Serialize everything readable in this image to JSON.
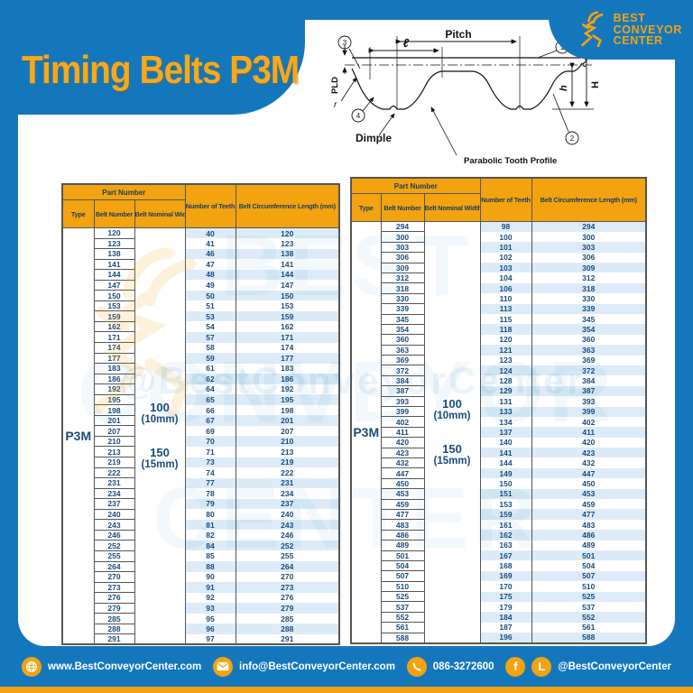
{
  "page": {
    "title": "Timing Belts P3M"
  },
  "logo": {
    "line1": "BEST",
    "line2": "CONVEYOR",
    "line3": "CENTER"
  },
  "colors": {
    "blue": "#1577bb",
    "yellow": "#f2a30f",
    "navy_text": "#1b4a7d",
    "stripe": "#dcebf7"
  },
  "diagram": {
    "labels": {
      "pitch": "Pitch",
      "length": "ℓ",
      "pld": "PLD",
      "r": "r",
      "h": "h",
      "H": "H",
      "dimple": "Dimple",
      "parabolic": "Parabolic Tooth Profile",
      "callout_1": "1",
      "callout_2": "2",
      "callout_3": "3",
      "callout_4": "4"
    }
  },
  "table_headers": {
    "part_number": "Part Number",
    "type": "Type",
    "belt_number": "Belt Number",
    "belt_nominal_width": "Belt Nominal Width",
    "number_of_teeth": "Number of Teeth",
    "belt_circumference": "Belt Circumference Length (mm)"
  },
  "tables": [
    {
      "type": "P3M",
      "width_labels": [
        "100",
        "(10mm)",
        "150",
        "(15mm)"
      ],
      "rows": [
        [
          120,
          40,
          120
        ],
        [
          123,
          41,
          123
        ],
        [
          138,
          46,
          138
        ],
        [
          141,
          47,
          141
        ],
        [
          144,
          48,
          144
        ],
        [
          147,
          49,
          147
        ],
        [
          150,
          50,
          150
        ],
        [
          153,
          51,
          153
        ],
        [
          159,
          53,
          159
        ],
        [
          162,
          54,
          162
        ],
        [
          171,
          57,
          171
        ],
        [
          174,
          58,
          174
        ],
        [
          177,
          59,
          177
        ],
        [
          183,
          61,
          183
        ],
        [
          186,
          62,
          186
        ],
        [
          192,
          64,
          192
        ],
        [
          195,
          65,
          195
        ],
        [
          198,
          66,
          198
        ],
        [
          201,
          67,
          201
        ],
        [
          207,
          69,
          207
        ],
        [
          210,
          70,
          210
        ],
        [
          213,
          71,
          213
        ],
        [
          219,
          73,
          219
        ],
        [
          222,
          74,
          222
        ],
        [
          231,
          77,
          231
        ],
        [
          234,
          78,
          234
        ],
        [
          237,
          79,
          237
        ],
        [
          240,
          80,
          240
        ],
        [
          243,
          81,
          243
        ],
        [
          246,
          82,
          246
        ],
        [
          252,
          84,
          252
        ],
        [
          255,
          85,
          255
        ],
        [
          264,
          88,
          264
        ],
        [
          270,
          90,
          270
        ],
        [
          273,
          91,
          273
        ],
        [
          276,
          92,
          276
        ],
        [
          279,
          93,
          279
        ],
        [
          285,
          95,
          285
        ],
        [
          288,
          96,
          288
        ],
        [
          291,
          97,
          291
        ]
      ]
    },
    {
      "type": "P3M",
      "width_labels": [
        "100",
        "(10mm)",
        "150",
        "(15mm)"
      ],
      "rows": [
        [
          294,
          98,
          294
        ],
        [
          300,
          100,
          300
        ],
        [
          303,
          101,
          303
        ],
        [
          306,
          102,
          306
        ],
        [
          309,
          103,
          309
        ],
        [
          312,
          104,
          312
        ],
        [
          318,
          106,
          318
        ],
        [
          330,
          110,
          330
        ],
        [
          339,
          113,
          339
        ],
        [
          345,
          115,
          345
        ],
        [
          354,
          118,
          354
        ],
        [
          360,
          120,
          360
        ],
        [
          363,
          121,
          363
        ],
        [
          369,
          123,
          369
        ],
        [
          372,
          124,
          372
        ],
        [
          384,
          128,
          384
        ],
        [
          387,
          129,
          387
        ],
        [
          393,
          131,
          393
        ],
        [
          399,
          133,
          399
        ],
        [
          402,
          134,
          402
        ],
        [
          411,
          137,
          411
        ],
        [
          420,
          140,
          420
        ],
        [
          423,
          141,
          423
        ],
        [
          432,
          144,
          432
        ],
        [
          447,
          149,
          447
        ],
        [
          450,
          150,
          450
        ],
        [
          453,
          151,
          453
        ],
        [
          459,
          153,
          459
        ],
        [
          477,
          159,
          477
        ],
        [
          483,
          161,
          483
        ],
        [
          486,
          162,
          486
        ],
        [
          489,
          163,
          489
        ],
        [
          501,
          167,
          501
        ],
        [
          504,
          168,
          504
        ],
        [
          507,
          169,
          507
        ],
        [
          510,
          170,
          510
        ],
        [
          525,
          175,
          525
        ],
        [
          537,
          179,
          537
        ],
        [
          552,
          184,
          552
        ],
        [
          561,
          187,
          561
        ],
        [
          588,
          196,
          588
        ]
      ]
    }
  ],
  "footer": {
    "website": "www.BestConveyorCenter.com",
    "email": "info@BestConveyorCenter.com",
    "phone": "086-3272600",
    "social_handle": "@BestConveyorCenter"
  }
}
